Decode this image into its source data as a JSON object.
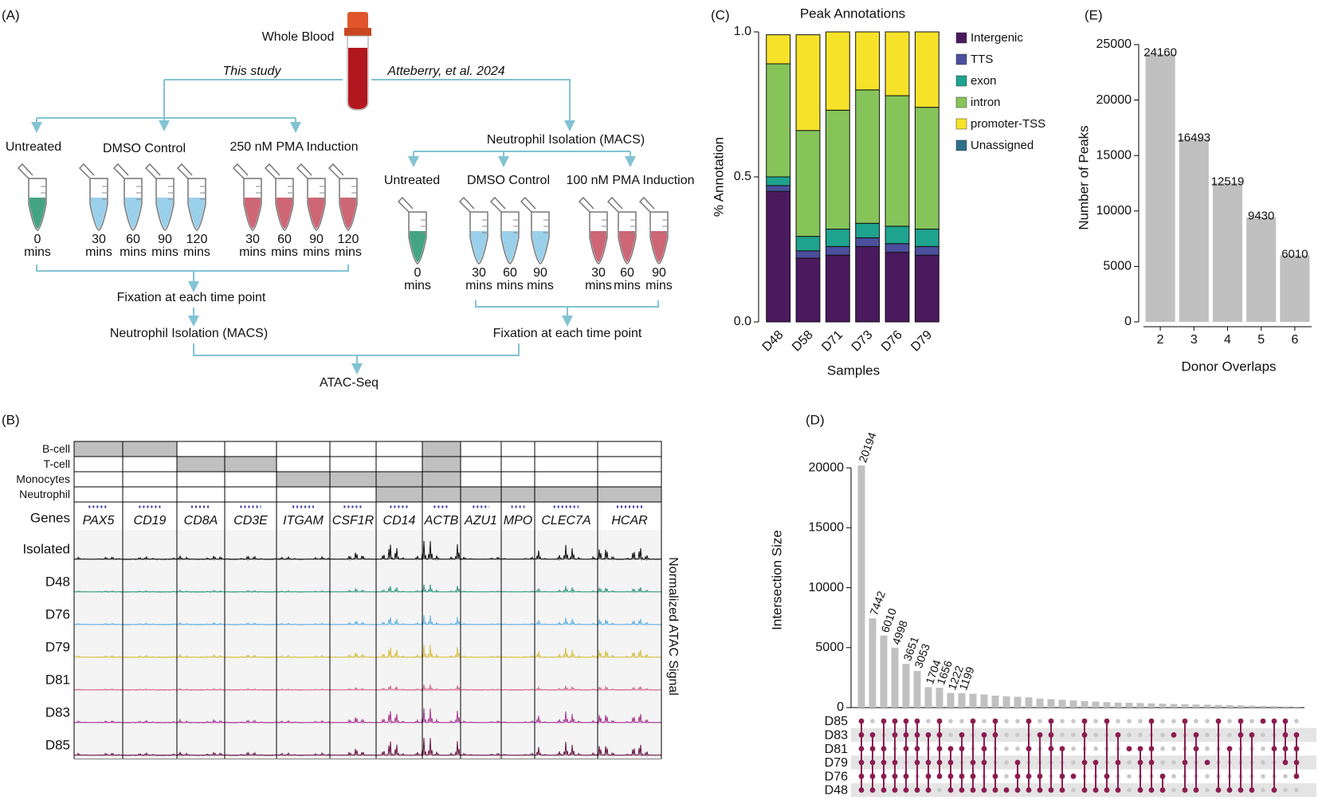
{
  "panel_a": {
    "label": "(A)",
    "source": "Whole Blood",
    "left_branch": "This study",
    "right_branch": "Atteberry, et al. 2024",
    "time_unit": "mins",
    "left": {
      "groups": [
        {
          "name": "Untreated",
          "color": "#2f9a77",
          "times": [
            0
          ]
        },
        {
          "name": "DMSO Control",
          "color": "#8fcbe8",
          "times": [
            30,
            60,
            90,
            120
          ]
        },
        {
          "name": "250 nM PMA Induction",
          "color": "#c85566",
          "times": [
            30,
            60,
            90,
            120
          ]
        }
      ],
      "steps": [
        "Fixation at each time point",
        "Neutrophil Isolation (MACS)"
      ]
    },
    "right": {
      "groups": [
        {
          "name": "Untreated",
          "color": "#2f9a77",
          "times": [
            0
          ]
        },
        {
          "name": "DMSO Control",
          "color": "#8fcbe8",
          "times": [
            30,
            60,
            90
          ]
        },
        {
          "name": "100 nM PMA Induction",
          "color": "#c85566",
          "times": [
            30,
            60,
            90
          ]
        }
      ],
      "steps": [
        "Neutrophil Isolation (MACS)",
        "Fixation at each time point"
      ]
    },
    "final": "ATAC-Seq"
  },
  "panel_b": {
    "label": "(B)",
    "genes_label": "Genes",
    "signal_label": "Normalized ATAC Signal",
    "genes": [
      "PAX5",
      "CD19",
      "CD8A",
      "CD3E",
      "ITGAM",
      "CSF1R",
      "CD14",
      "ACTB",
      "AZU1",
      "MPO",
      "CLEC7A",
      "HCAR"
    ],
    "cell_types": [
      {
        "name": "B-cell",
        "marked": [
          true,
          true,
          false,
          false,
          false,
          false,
          false,
          true,
          false,
          false,
          false,
          false
        ]
      },
      {
        "name": "T-cell",
        "marked": [
          false,
          false,
          true,
          true,
          false,
          false,
          false,
          true,
          false,
          false,
          false,
          false
        ]
      },
      {
        "name": "Monocytes",
        "marked": [
          false,
          false,
          false,
          false,
          true,
          true,
          true,
          true,
          false,
          false,
          false,
          false
        ]
      },
      {
        "name": "Neutrophil",
        "marked": [
          false,
          false,
          false,
          false,
          false,
          false,
          true,
          true,
          true,
          true,
          true,
          true
        ]
      }
    ],
    "samples": [
      {
        "name": "Isolated",
        "color": "#111111"
      },
      {
        "name": "D48",
        "color": "#3a9a84"
      },
      {
        "name": "D76",
        "color": "#6ab4e0"
      },
      {
        "name": "D79",
        "color": "#d8c24a"
      },
      {
        "name": "D81",
        "color": "#d46a8a"
      },
      {
        "name": "D83",
        "color": "#a83a96"
      },
      {
        "name": "D85",
        "color": "#6b1a48"
      }
    ]
  },
  "chart_data": [
    {
      "type": "stacked_bar",
      "panel": "(C)",
      "title": "Peak Annotations",
      "x_label": "Samples",
      "y_label": "% Annotation",
      "categories": [
        "D48",
        "D58",
        "D71",
        "D73",
        "D76",
        "D79"
      ],
      "series": [
        {
          "name": "Intergenic",
          "color": "#4b1a5e",
          "values": [
            0.45,
            0.22,
            0.23,
            0.26,
            0.24,
            0.23
          ]
        },
        {
          "name": "TTS",
          "color": "#4b4f9c",
          "values": [
            0.02,
            0.025,
            0.03,
            0.03,
            0.03,
            0.03
          ]
        },
        {
          "name": "exon",
          "color": "#1ea38e",
          "values": [
            0.03,
            0.05,
            0.06,
            0.05,
            0.06,
            0.06
          ]
        },
        {
          "name": "intron",
          "color": "#86c45a",
          "values": [
            0.39,
            0.365,
            0.41,
            0.46,
            0.45,
            0.42
          ]
        },
        {
          "name": "promoter-TSS",
          "color": "#f7e22a",
          "values": [
            0.1,
            0.33,
            0.27,
            0.2,
            0.22,
            0.26
          ]
        },
        {
          "name": "Unassigned",
          "color": "#2f6f8a",
          "values": [
            0,
            0,
            0,
            0,
            0,
            0
          ]
        }
      ],
      "ylim": [
        0,
        1
      ],
      "yticks": [
        {
          "value": 0,
          "label": "0.0"
        },
        {
          "value": 0.5,
          "label": "0.5"
        },
        {
          "value": 1,
          "label": "1.0"
        }
      ],
      "legend": "right"
    },
    {
      "type": "bar",
      "panel": "(E)",
      "x_label": "Donor Overlaps",
      "y_label": "Number of Peaks",
      "categories": [
        "2",
        "3",
        "4",
        "5",
        "6"
      ],
      "values": [
        24160,
        16493,
        12519,
        9430,
        6010
      ],
      "color": "#c0c0c0",
      "ylim": [
        0,
        26000
      ],
      "yticks": [
        0,
        5000,
        10000,
        15000,
        20000,
        25000
      ]
    },
    {
      "type": "upset",
      "panel": "(D)",
      "y_label": "Intersection Size",
      "values": [
        20194,
        7442,
        6010,
        4998,
        3651,
        3053,
        1704,
        1656,
        1222,
        1199,
        1150,
        1100,
        1000,
        950,
        900,
        850,
        750,
        700,
        650,
        600,
        550,
        500,
        450,
        420,
        400,
        380,
        350,
        330,
        300,
        280,
        260,
        240,
        220,
        200,
        180,
        160,
        140,
        120,
        100,
        80
      ],
      "labeled": [
        true,
        true,
        true,
        true,
        true,
        true,
        true,
        true,
        true,
        true,
        false,
        false,
        false,
        false,
        false,
        false,
        false,
        false,
        false,
        false,
        false,
        false,
        false,
        false,
        false,
        false,
        false,
        false,
        false,
        false,
        false,
        false,
        false,
        false,
        false,
        false,
        false,
        false,
        false,
        false
      ],
      "sets": [
        "D85",
        "D83",
        "D81",
        "D79",
        "D76",
        "D48"
      ],
      "members": [
        [
          0,
          1,
          2,
          3,
          4,
          5
        ],
        [
          1,
          2,
          3,
          4,
          5
        ],
        [
          0,
          2,
          3,
          4,
          5
        ],
        [
          0,
          1,
          3,
          4,
          5
        ],
        [
          0,
          1,
          2,
          4,
          5
        ],
        [
          0,
          1,
          2,
          3,
          5
        ],
        [
          1,
          3,
          4,
          5
        ],
        [
          0,
          1,
          2,
          3,
          4
        ],
        [
          2,
          3,
          4,
          5
        ],
        [
          1,
          2,
          4,
          5
        ],
        [
          0,
          3,
          4,
          5
        ],
        [
          1,
          2,
          3,
          5
        ],
        [
          0,
          1,
          4,
          5
        ],
        [
          5
        ],
        [
          3,
          4,
          5
        ],
        [
          0,
          2,
          4,
          5
        ],
        [
          1,
          4,
          5
        ],
        [
          0,
          1,
          2,
          5
        ],
        [
          2,
          4,
          5
        ],
        [
          4
        ],
        [
          0,
          1,
          3,
          5
        ],
        [
          3,
          5
        ],
        [
          0,
          4,
          5
        ],
        [
          1,
          3,
          5
        ],
        [
          2
        ],
        [
          2,
          3,
          5
        ],
        [
          0,
          2,
          3,
          5
        ],
        [
          4,
          5
        ],
        [
          1
        ],
        [
          0,
          3,
          5
        ],
        [
          1,
          2,
          5
        ],
        [
          3
        ],
        [
          0,
          5
        ],
        [
          2,
          5
        ],
        [
          0,
          1,
          5
        ],
        [
          1,
          5
        ],
        [
          0
        ],
        [
          0,
          2,
          5
        ],
        [
          0,
          1,
          2,
          3
        ],
        [
          1,
          2,
          3,
          4
        ]
      ],
      "color": "#c0c0c0",
      "dot_color": "#8b1d4f",
      "ylim": [
        0,
        22000
      ],
      "yticks": [
        0,
        5000,
        10000,
        15000,
        20000
      ]
    }
  ]
}
